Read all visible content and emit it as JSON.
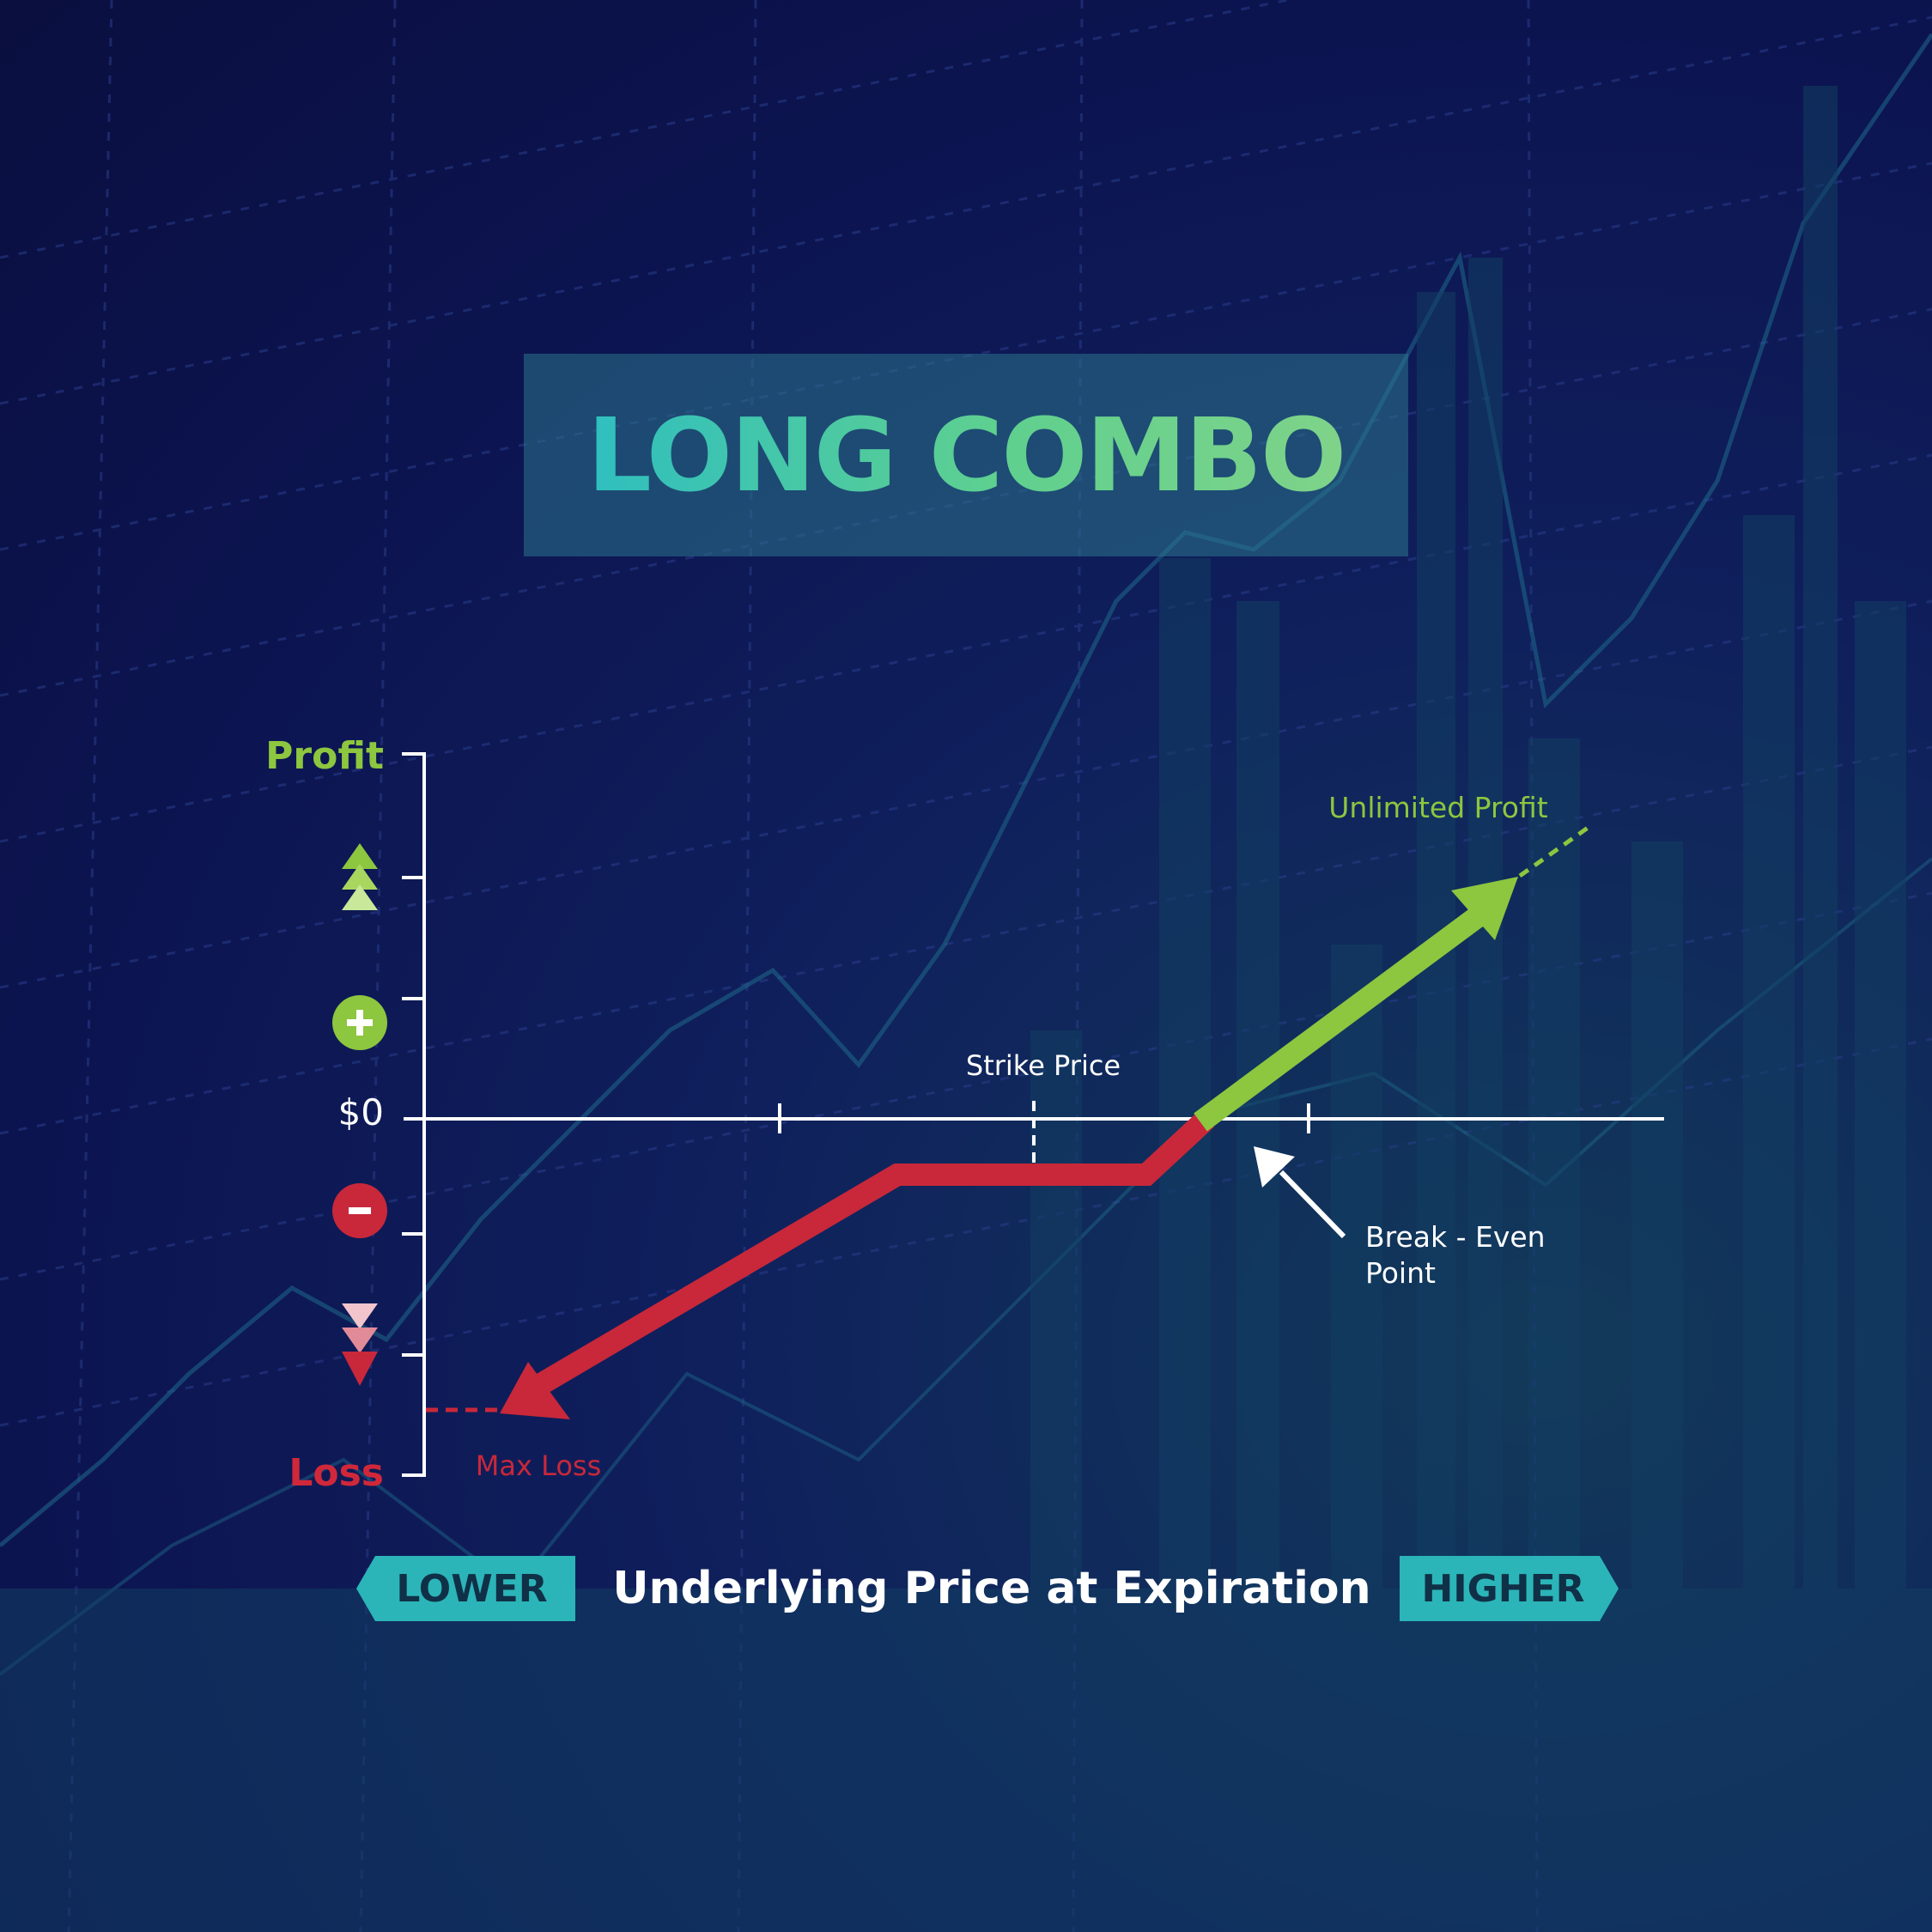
{
  "title": "LONG COMBO",
  "chart_data": {
    "type": "line",
    "title": "LONG COMBO",
    "xlabel": "Underlying Price at Expiration",
    "x_direction_labels": {
      "lower": "LOWER",
      "higher": "HIGHER"
    },
    "y_labels": {
      "top": "Profit",
      "zero": "$0",
      "bottom": "Loss"
    },
    "annotations": {
      "strike": "Strike Price",
      "breakeven": "Break - Even Point",
      "breakeven_line1": "Break - Even",
      "breakeven_line2": "Point",
      "max_loss": "Max Loss",
      "unlimited_profit": "Unlimited Profit"
    },
    "colors": {
      "loss": "#c8283a",
      "profit": "#8dc63f",
      "axis": "#ffffff",
      "accent": "#2bb5b8"
    },
    "icons": [
      "triangle-up-icon",
      "plus-circle-icon",
      "minus-circle-icon",
      "triangle-down-icon"
    ]
  }
}
